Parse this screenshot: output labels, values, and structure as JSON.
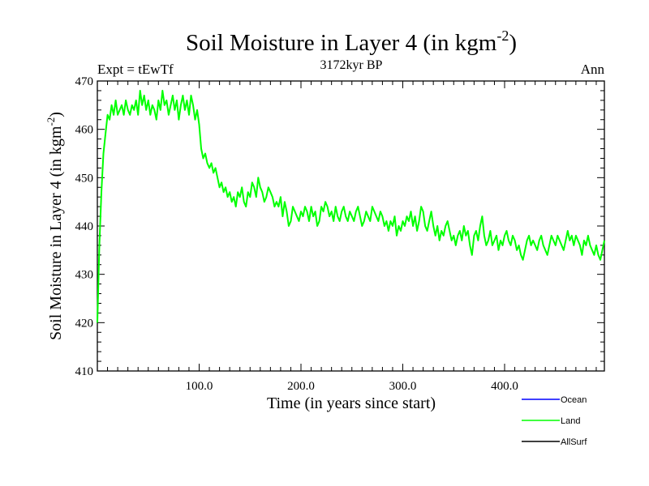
{
  "chart_data": {
    "type": "line",
    "title": "Soil Moisture in Layer 4 (in kgm",
    "title_sup": "-2",
    "title_close": ")",
    "left_label": "Expt = tEwTf",
    "center_label": "3172kyr BP",
    "right_label": "Ann",
    "xlabel": "Time (in years since start)",
    "ylabel": "Soil Moisture in Layer 4 (in kgm",
    "ylabel_sup": "-2",
    "ylabel_close": ")",
    "xlim": [
      0,
      498
    ],
    "ylim": [
      410,
      470
    ],
    "xticks": [
      100,
      200,
      300,
      400
    ],
    "xtick_labels": [
      "100.0",
      "200.0",
      "300.0",
      "400.0"
    ],
    "yticks": [
      410,
      420,
      430,
      440,
      450,
      460,
      470
    ],
    "ytick_labels": [
      "410",
      "420",
      "430",
      "440",
      "450",
      "460",
      "470"
    ],
    "legend": [
      {
        "name": "Ocean",
        "color": "#0000ff"
      },
      {
        "name": "Land",
        "color": "#00ff00"
      },
      {
        "name": "AllSurf",
        "color": "#000000"
      }
    ],
    "series": [
      {
        "name": "Land",
        "color": "#00ff00",
        "x": [
          0,
          2,
          4,
          6,
          8,
          10,
          12,
          14,
          16,
          18,
          20,
          22,
          24,
          26,
          28,
          30,
          32,
          34,
          36,
          38,
          40,
          42,
          44,
          46,
          48,
          50,
          52,
          54,
          56,
          58,
          60,
          62,
          64,
          66,
          68,
          70,
          72,
          74,
          76,
          78,
          80,
          82,
          84,
          86,
          88,
          90,
          92,
          94,
          96,
          98,
          100,
          102,
          104,
          106,
          108,
          110,
          112,
          114,
          116,
          118,
          120,
          122,
          124,
          126,
          128,
          130,
          132,
          134,
          136,
          138,
          140,
          142,
          144,
          146,
          148,
          150,
          152,
          154,
          156,
          158,
          160,
          162,
          164,
          166,
          168,
          170,
          172,
          174,
          176,
          178,
          180,
          182,
          184,
          186,
          188,
          190,
          192,
          194,
          196,
          198,
          200,
          202,
          204,
          206,
          208,
          210,
          212,
          214,
          216,
          218,
          220,
          222,
          224,
          226,
          228,
          230,
          232,
          234,
          236,
          238,
          240,
          242,
          244,
          246,
          248,
          250,
          252,
          254,
          256,
          258,
          260,
          262,
          264,
          266,
          268,
          270,
          272,
          274,
          276,
          278,
          280,
          282,
          284,
          286,
          288,
          290,
          292,
          294,
          296,
          298,
          300,
          302,
          304,
          306,
          308,
          310,
          312,
          314,
          316,
          318,
          320,
          322,
          324,
          326,
          328,
          330,
          332,
          334,
          336,
          338,
          340,
          342,
          344,
          346,
          348,
          350,
          352,
          354,
          356,
          358,
          360,
          362,
          364,
          366,
          368,
          370,
          372,
          374,
          376,
          378,
          380,
          382,
          384,
          386,
          388,
          390,
          392,
          394,
          396,
          398,
          400,
          402,
          404,
          406,
          408,
          410,
          412,
          414,
          416,
          418,
          420,
          422,
          424,
          426,
          428,
          430,
          432,
          434,
          436,
          438,
          440,
          442,
          444,
          446,
          448,
          450,
          452,
          454,
          456,
          458,
          460,
          462,
          464,
          466,
          468,
          470,
          472,
          474,
          476,
          478,
          480,
          482,
          484,
          486,
          488,
          490,
          492,
          494,
          496,
          498
        ],
        "y": [
          420,
          436,
          447,
          455,
          459,
          463,
          462,
          465,
          463,
          466,
          463,
          464,
          465,
          463,
          466,
          464,
          463,
          465,
          464,
          466,
          463,
          468,
          465,
          467,
          464,
          466,
          463,
          465,
          464,
          462,
          466,
          464,
          468,
          465,
          466,
          463,
          465,
          467,
          464,
          466,
          462,
          465,
          467,
          464,
          466,
          463,
          467,
          465,
          462,
          464,
          461,
          456,
          454,
          455,
          453,
          452,
          453,
          451,
          452,
          450,
          448,
          449,
          447,
          448,
          446,
          447,
          445,
          446,
          444,
          447,
          446,
          448,
          445,
          444,
          447,
          446,
          449,
          448,
          446,
          450,
          448,
          447,
          445,
          446,
          448,
          447,
          446,
          444,
          445,
          444,
          446,
          442,
          445,
          443,
          440,
          441,
          444,
          443,
          442,
          441,
          443,
          442,
          444,
          443,
          441,
          444,
          442,
          443,
          440,
          441,
          444,
          443,
          445,
          444,
          442,
          443,
          441,
          444,
          442,
          441,
          443,
          444,
          442,
          441,
          443,
          442,
          441,
          443,
          444,
          442,
          440,
          441,
          443,
          442,
          441,
          444,
          443,
          442,
          441,
          443,
          442,
          440,
          441,
          439,
          441,
          440,
          442,
          438,
          440,
          439,
          441,
          440,
          442,
          441,
          443,
          440,
          442,
          439,
          441,
          444,
          443,
          440,
          439,
          441,
          443,
          440,
          438,
          440,
          437,
          439,
          438,
          440,
          441,
          439,
          437,
          438,
          436,
          438,
          439,
          437,
          440,
          438,
          439,
          436,
          434,
          438,
          439,
          437,
          440,
          442,
          438,
          436,
          437,
          439,
          436,
          437,
          438,
          435,
          437,
          436,
          438,
          439,
          437,
          436,
          438,
          437,
          435,
          436,
          434,
          433,
          435,
          437,
          438,
          436,
          437,
          436,
          435,
          437,
          438,
          436,
          435,
          434,
          436,
          438,
          437,
          436,
          438,
          437,
          436,
          435,
          437,
          439,
          437,
          438,
          436,
          438,
          437,
          436,
          434,
          437,
          436,
          438,
          436,
          435,
          434,
          436,
          434,
          433,
          435,
          437
        ]
      }
    ]
  }
}
